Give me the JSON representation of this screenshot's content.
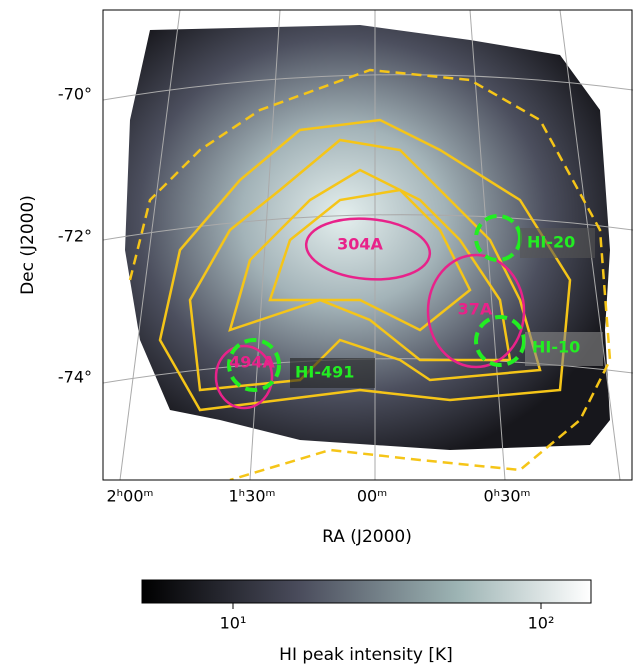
{
  "figure": {
    "x_axis_label": "RA (J2000)",
    "y_axis_label": "Dec (J2000)",
    "x_ticks": [
      "2ʰ00ᵐ",
      "1ʰ30ᵐ",
      "00ᵐ",
      "0ʰ30ᵐ"
    ],
    "y_ticks": [
      "-70°",
      "-72°",
      "-74°"
    ],
    "regions": [
      "304A",
      "37A",
      "494A"
    ],
    "clouds": [
      "HI-20",
      "HI-10",
      "HI-491"
    ],
    "colorbar": {
      "label": "HI peak intensity [K]",
      "ticks": [
        "10¹",
        "10²"
      ]
    }
  }
}
